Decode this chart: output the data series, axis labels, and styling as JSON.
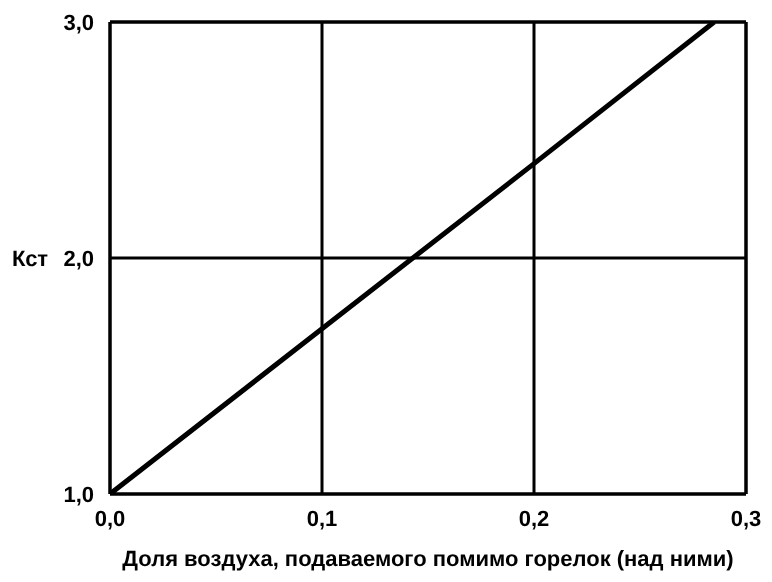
{
  "chart_data": {
    "type": "line",
    "xlabel": "Доля воздуха, подаваемого помимо горелок (над ними)",
    "ylabel": "Кст",
    "x": [
      0,
      0.1,
      0.2,
      0.285
    ],
    "series": [
      {
        "color": "#000000",
        "values": [
          1.0,
          1.7,
          2.4,
          3.0
        ]
      }
    ],
    "xlim": [
      0,
      0.3
    ],
    "xticks": [
      {
        "value": 0,
        "label": "0,0"
      },
      {
        "value": 0.1,
        "label": "0,1"
      },
      {
        "value": 0.2,
        "label": "0,2"
      },
      {
        "value": 0.3,
        "label": "0,3"
      }
    ],
    "ylim": [
      1,
      3
    ],
    "yticks": [
      {
        "value": 1,
        "label": "1,0"
      },
      {
        "value": 2,
        "label": "2,0"
      },
      {
        "value": 3,
        "label": "3,0"
      }
    ],
    "grid": true,
    "marker": "none",
    "line_style": "solid"
  }
}
